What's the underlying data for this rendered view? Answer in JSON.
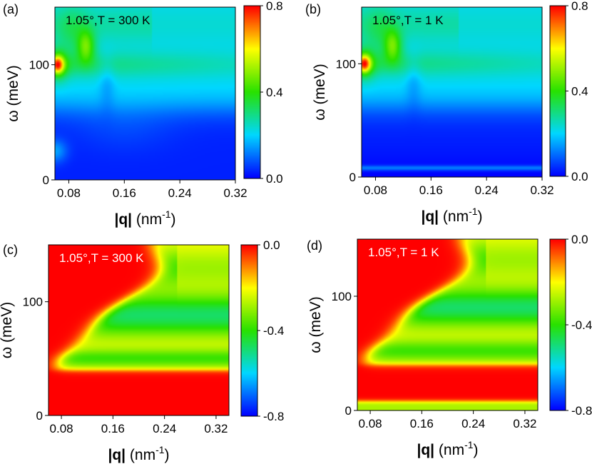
{
  "chart_data": [
    {
      "panel": "(a)",
      "type": "heatmap",
      "annotation": "1.05°,T = 300 K",
      "xlabel_var": "|q|",
      "xlabel_unit": "(nm",
      "xlabel_sup": "-1",
      "xlabel_close": ")",
      "ylabel_var": "ω",
      "ylabel_unit": "(meV)",
      "xlim": [
        0.06,
        0.32
      ],
      "ylim": [
        0,
        150
      ],
      "xticks": [
        0.08,
        0.16,
        0.24,
        0.32
      ],
      "xtick_labels": [
        "0.08",
        "0.16",
        "0.24",
        "0.32"
      ],
      "yticks": [
        0,
        100
      ],
      "ytick_labels": [
        "0",
        "100"
      ],
      "colorbar": {
        "range": [
          0.0,
          0.8
        ],
        "ticks": [
          0.0,
          0.4,
          0.8
        ],
        "tick_labels": [
          "0.0",
          "0.4",
          "0.8"
        ],
        "colormap": "rainbow"
      },
      "mode": "loss",
      "features": [
        "hot spot near (0.065, 100) meV",
        "peak near q=0.105, ω=110–120",
        "plasmon band ω≈95–110",
        "weak branch ω≈25 at low q"
      ]
    },
    {
      "panel": "(b)",
      "type": "heatmap",
      "annotation": "1.05°,T = 1 K",
      "xlabel_var": "|q|",
      "xlabel_unit": "(nm",
      "xlabel_sup": "-1",
      "xlabel_close": ")",
      "ylabel_var": "ω",
      "ylabel_unit": "(meV)",
      "xlim": [
        0.06,
        0.32
      ],
      "ylim": [
        0,
        150
      ],
      "xticks": [
        0.08,
        0.16,
        0.24,
        0.32
      ],
      "xtick_labels": [
        "0.08",
        "0.16",
        "0.24",
        "0.32"
      ],
      "yticks": [
        0,
        100
      ],
      "ytick_labels": [
        "0",
        "100"
      ],
      "colorbar": {
        "range": [
          0.0,
          0.8
        ],
        "ticks": [
          0.0,
          0.4,
          0.8
        ],
        "tick_labels": [
          "0.0",
          "0.4",
          "0.8"
        ],
        "colormap": "rainbow"
      },
      "mode": "loss_cold",
      "features": [
        "hot spot near (0.065, 100) meV",
        "peak near q=0.105, ω=110–120",
        "plasmon band ω≈95–110",
        "thin line ω≈8"
      ]
    },
    {
      "panel": "(c)",
      "type": "heatmap",
      "annotation": "1.05°,T = 300 K",
      "xlabel_var": "|q|",
      "xlabel_unit": "(nm",
      "xlabel_sup": "-1",
      "xlabel_close": ")",
      "ylabel_var": "ω",
      "ylabel_unit": "(meV)",
      "xlim": [
        0.06,
        0.34
      ],
      "ylim": [
        0,
        150
      ],
      "xticks": [
        0.08,
        0.16,
        0.24,
        0.32
      ],
      "xtick_labels": [
        "0.08",
        "0.16",
        "0.24",
        "0.32"
      ],
      "yticks": [
        0,
        100
      ],
      "ytick_labels": [
        "0",
        "100"
      ],
      "colorbar": {
        "range": [
          -0.8,
          0.0
        ],
        "ticks": [
          -0.8,
          -0.4,
          0.0
        ],
        "tick_labels": [
          "-0.8",
          "-0.4",
          "0.0"
        ],
        "colormap": "rainbow"
      },
      "mode": "im",
      "features": [
        "near 0 at low q",
        "minimum near ω≈85–90 at q>0.16",
        "red band ω<38"
      ]
    },
    {
      "panel": "(d)",
      "type": "heatmap",
      "annotation": "1.05°,T = 1 K",
      "xlabel_var": "|q|",
      "xlabel_unit": "(nm",
      "xlabel_sup": "-1",
      "xlabel_close": ")",
      "ylabel_var": "ω",
      "ylabel_unit": "(meV)",
      "xlim": [
        0.06,
        0.34
      ],
      "ylim": [
        0,
        150
      ],
      "xticks": [
        0.08,
        0.16,
        0.24,
        0.32
      ],
      "xtick_labels": [
        "0.08",
        "0.16",
        "0.24",
        "0.32"
      ],
      "yticks": [
        0,
        100
      ],
      "ytick_labels": [
        "0",
        "100"
      ],
      "colorbar": {
        "range": [
          -0.8,
          0.0
        ],
        "ticks": [
          -0.8,
          -0.4,
          0.0
        ],
        "tick_labels": [
          "-0.8",
          "-0.4",
          "0.0"
        ],
        "colormap": "rainbow"
      },
      "mode": "im_cold",
      "features": [
        "near 0 at low q",
        "minimum near ω≈85–90 at q>0.16",
        "red band ω 10–40",
        "thin line ω≈5"
      ]
    }
  ]
}
